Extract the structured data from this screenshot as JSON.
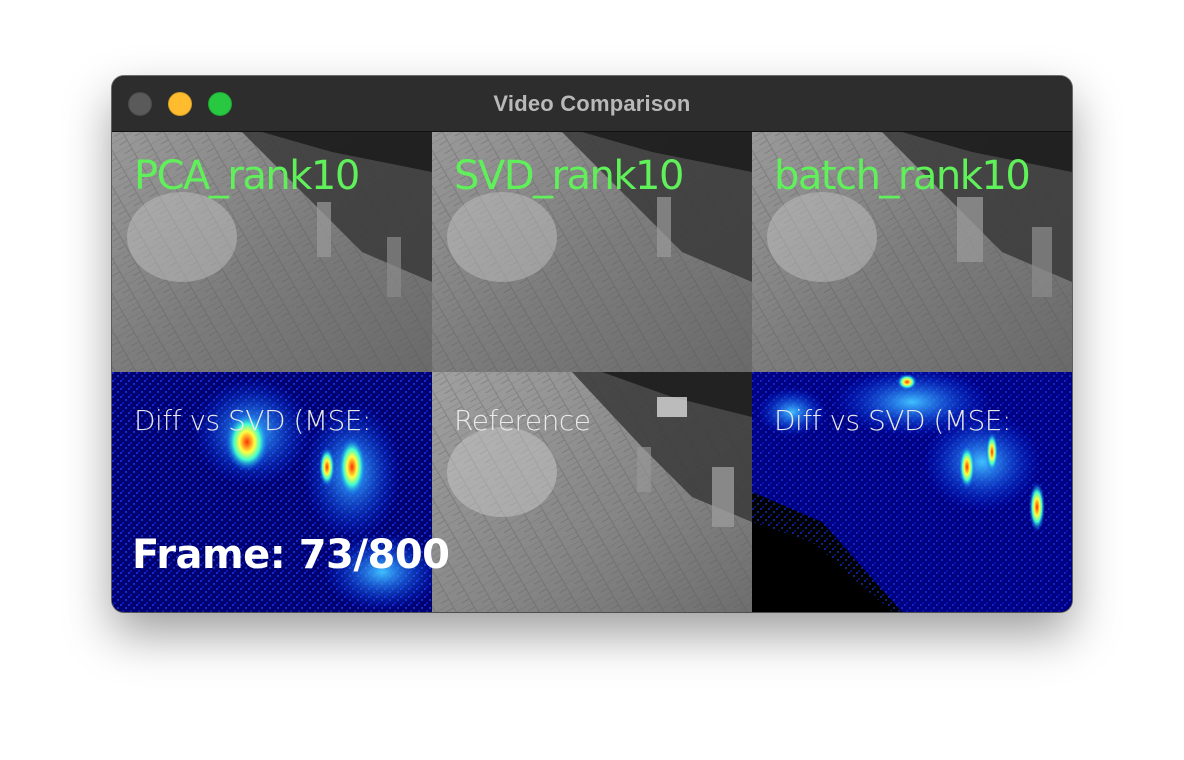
{
  "window": {
    "title": "Video Comparison"
  },
  "panels": {
    "top": [
      {
        "label": "PCA_rank10"
      },
      {
        "label": "SVD_rank10"
      },
      {
        "label": "batch_rank10"
      }
    ],
    "bottom": [
      {
        "label": "Diff vs SVD (MSE:"
      },
      {
        "label": "Reference"
      },
      {
        "label": "Diff vs SVD (MSE:"
      }
    ]
  },
  "overlay": {
    "frame_text": "Frame: 73/800"
  },
  "colors": {
    "label_green": "#5ff05a",
    "label_white": "#eaeaea",
    "heatmap_bg": "#000088",
    "traffic_close": "#5a5a5a",
    "traffic_minimize": "#febc2e",
    "traffic_zoom": "#28c840"
  }
}
